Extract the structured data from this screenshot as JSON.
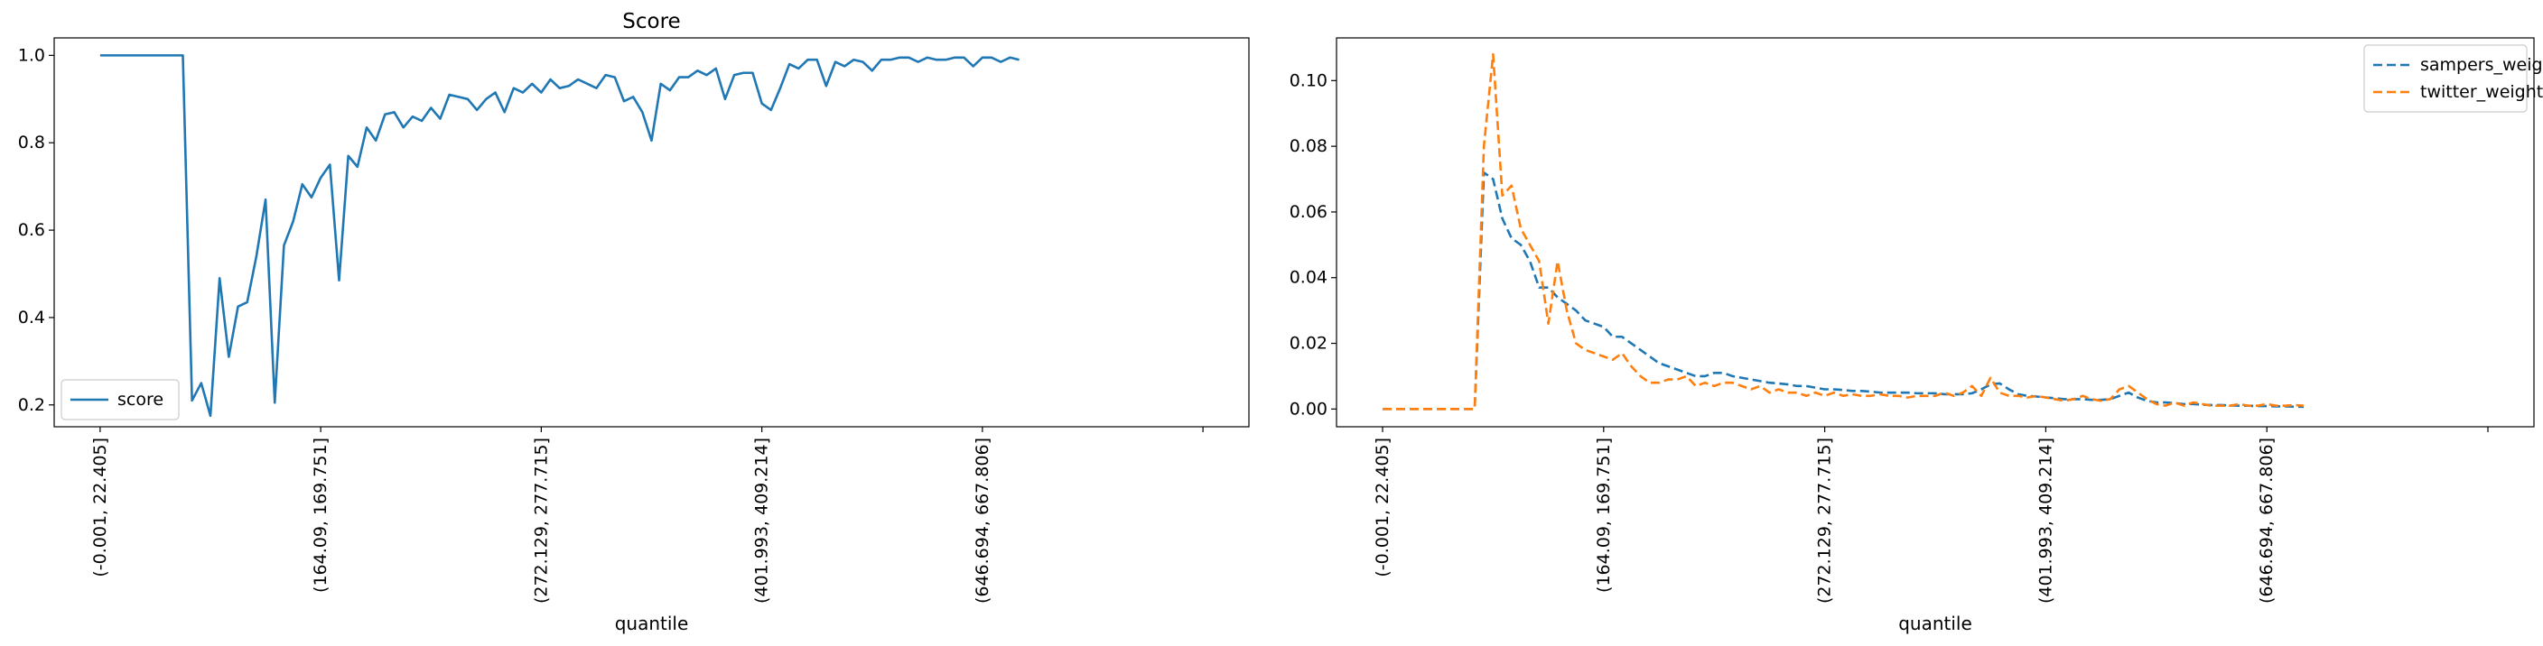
{
  "chart_data": [
    {
      "type": "line",
      "title": "Score",
      "xlabel": "",
      "ylabel": "",
      "xlim": [
        -5,
        125
      ],
      "ylim": [
        0.15,
        1.04
      ],
      "grid": false,
      "legend_position": "lower-left",
      "x_ticks": [
        0,
        24,
        48,
        72,
        96,
        120
      ],
      "x_tick_labels": [
        "(-0.001, 22.405]",
        "(164.09, 169.751]",
        "(272.129, 277.715]",
        "(401.993, 409.214]",
        "(646.694, 667.806]",
        ""
      ],
      "y_ticks": [
        0.2,
        0.4,
        0.6,
        0.8,
        1.0
      ],
      "y_tick_labels": [
        "0.2",
        "0.4",
        "0.6",
        "0.8",
        "1.0"
      ],
      "series": [
        {
          "name": "score",
          "color": "#1f77b4",
          "style": "solid",
          "values": [
            1.0,
            1.0,
            1.0,
            1.0,
            1.0,
            1.0,
            1.0,
            1.0,
            1.0,
            1.0,
            0.21,
            0.25,
            0.175,
            0.49,
            0.31,
            0.425,
            0.435,
            0.54,
            0.67,
            0.205,
            0.565,
            0.62,
            0.705,
            0.675,
            0.72,
            0.75,
            0.485,
            0.77,
            0.745,
            0.835,
            0.805,
            0.865,
            0.87,
            0.835,
            0.86,
            0.85,
            0.88,
            0.855,
            0.91,
            0.905,
            0.9,
            0.875,
            0.9,
            0.915,
            0.87,
            0.925,
            0.915,
            0.935,
            0.915,
            0.945,
            0.925,
            0.93,
            0.945,
            0.935,
            0.925,
            0.955,
            0.95,
            0.895,
            0.905,
            0.87,
            0.805,
            0.935,
            0.92,
            0.95,
            0.95,
            0.965,
            0.955,
            0.97,
            0.9,
            0.955,
            0.96,
            0.96,
            0.89,
            0.875,
            0.925,
            0.98,
            0.97,
            0.99,
            0.99,
            0.93,
            0.985,
            0.975,
            0.99,
            0.985,
            0.965,
            0.99,
            0.99,
            0.995,
            0.995,
            0.985,
            0.995,
            0.99,
            0.99,
            0.995,
            0.995,
            0.975,
            0.995,
            0.995,
            0.985,
            0.995,
            0.99
          ]
        }
      ]
    },
    {
      "type": "line",
      "title": "",
      "xlabel": "",
      "ylabel": "",
      "xlim": [
        -5,
        125
      ],
      "ylim": [
        -0.0054,
        0.113
      ],
      "grid": false,
      "legend_position": "top-right",
      "x_ticks": [
        0,
        24,
        48,
        72,
        96,
        120
      ],
      "x_tick_labels": [
        "(-0.001, 22.405]",
        "(164.09, 169.751]",
        "(272.129, 277.715]",
        "(401.993, 409.214]",
        "(646.694, 667.806]",
        ""
      ],
      "y_ticks": [
        0.0,
        0.02,
        0.04,
        0.06,
        0.08,
        0.1
      ],
      "y_tick_labels": [
        "0.00",
        "0.02",
        "0.04",
        "0.06",
        "0.08",
        "0.10"
      ],
      "series": [
        {
          "name": "sampers_weight",
          "color": "#1f77b4",
          "style": "dashed",
          "values": [
            0,
            0,
            0,
            0,
            0,
            0,
            0,
            0,
            0,
            0,
            0,
            0.072,
            0.07,
            0.058,
            0.052,
            0.05,
            0.045,
            0.037,
            0.037,
            0.034,
            0.032,
            0.03,
            0.027,
            0.026,
            0.025,
            0.022,
            0.022,
            0.02,
            0.018,
            0.016,
            0.014,
            0.013,
            0.012,
            0.011,
            0.01,
            0.01,
            0.011,
            0.011,
            0.01,
            0.0095,
            0.009,
            0.0085,
            0.008,
            0.0078,
            0.0075,
            0.007,
            0.007,
            0.0065,
            0.006,
            0.006,
            0.0058,
            0.0055,
            0.0055,
            0.0053,
            0.005,
            0.005,
            0.005,
            0.005,
            0.0048,
            0.0048,
            0.0048,
            0.0045,
            0.0045,
            0.0045,
            0.0048,
            0.006,
            0.0075,
            0.0078,
            0.006,
            0.0045,
            0.004,
            0.0038,
            0.0035,
            0.0033,
            0.003,
            0.003,
            0.003,
            0.0028,
            0.0028,
            0.003,
            0.004,
            0.005,
            0.0035,
            0.0025,
            0.002,
            0.002,
            0.0018,
            0.0015,
            0.0015,
            0.0013,
            0.0012,
            0.0012,
            0.0011,
            0.001,
            0.001,
            0.0009,
            0.0009,
            0.0008,
            0.0008,
            0.0007,
            0.0007
          ]
        },
        {
          "name": "twitter_weight",
          "color": "#ff7f0e",
          "style": "dashed",
          "values": [
            0,
            0,
            0,
            0,
            0,
            0,
            0,
            0,
            0,
            0,
            0,
            0.08,
            0.108,
            0.065,
            0.068,
            0.055,
            0.05,
            0.045,
            0.026,
            0.045,
            0.03,
            0.02,
            0.018,
            0.017,
            0.016,
            0.015,
            0.017,
            0.013,
            0.01,
            0.008,
            0.008,
            0.009,
            0.009,
            0.01,
            0.007,
            0.008,
            0.007,
            0.008,
            0.008,
            0.007,
            0.006,
            0.007,
            0.005,
            0.006,
            0.005,
            0.005,
            0.004,
            0.005,
            0.004,
            0.005,
            0.004,
            0.0045,
            0.004,
            0.004,
            0.0045,
            0.004,
            0.004,
            0.0035,
            0.004,
            0.004,
            0.004,
            0.005,
            0.004,
            0.005,
            0.007,
            0.004,
            0.0095,
            0.005,
            0.004,
            0.004,
            0.0035,
            0.004,
            0.0035,
            0.003,
            0.0025,
            0.003,
            0.004,
            0.003,
            0.0025,
            0.003,
            0.006,
            0.007,
            0.005,
            0.003,
            0.0015,
            0.001,
            0.002,
            0.001,
            0.002,
            0.0015,
            0.001,
            0.001,
            0.001,
            0.0015,
            0.001,
            0.001,
            0.0015,
            0.001,
            0.001,
            0.0012,
            0.001
          ]
        }
      ]
    }
  ],
  "panels": [
    {
      "x_axis_title": "quantile"
    },
    {
      "x_axis_title": "quantile"
    }
  ]
}
